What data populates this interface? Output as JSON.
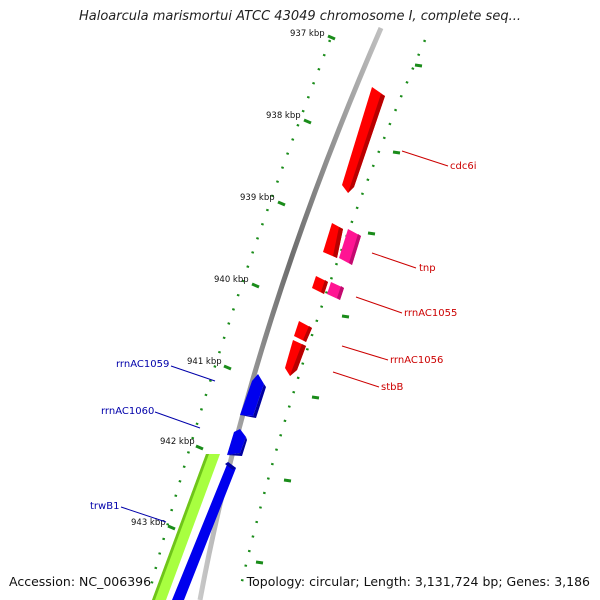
{
  "header": {
    "title": "Haloarcula marismortui ATCC 43049 chromosome I, complete seq..."
  },
  "footer": {
    "accession": "Accession: NC_006396",
    "topology": "Topology: circular; Length: 3,131,724 bp; Genes: 3,186"
  },
  "ticks": [
    "937 kbp",
    "938 kbp",
    "939 kbp",
    "940 kbp",
    "941 kbp",
    "942 kbp",
    "943 kbp"
  ],
  "genes": {
    "cdc6i": "cdc6i",
    "tnp": "tnp",
    "rrnAC1055": "rrnAC1055",
    "rrnAC1056": "rrnAC1056",
    "stbB": "stbB",
    "rrnAC1059": "rrnAC1059",
    "rrnAC1060": "rrnAC1060",
    "trwB1": "trwB1"
  },
  "colors": {
    "forward_gene": "#ff0000",
    "forward_other": "#ff1493",
    "reverse_gene": "#0000ff",
    "rna_feature": "#a8ff40",
    "backbone": "#7a7a7a",
    "tick": "#1a8c1a",
    "forward_label": "#cc0000",
    "reverse_label": "#0000aa"
  }
}
